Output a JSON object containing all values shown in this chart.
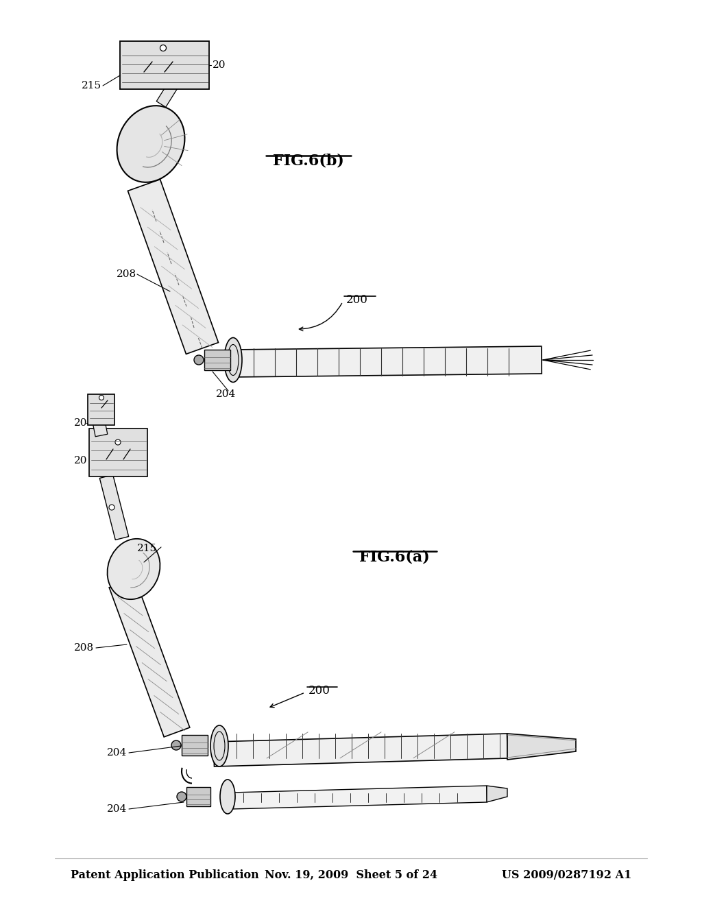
{
  "background_color": "#ffffff",
  "header_left": "Patent Application Publication",
  "header_mid": "Nov. 19, 2009  Sheet 5 of 24",
  "header_right": "US 2009/0287192 A1",
  "fig_a_label": "FIG.6(a)",
  "fig_b_label": "FIG.6(b)",
  "line_color": "#000000",
  "text_color": "#000000",
  "font_size_header": 11.5,
  "font_size_fig": 15,
  "font_size_ref": 11
}
